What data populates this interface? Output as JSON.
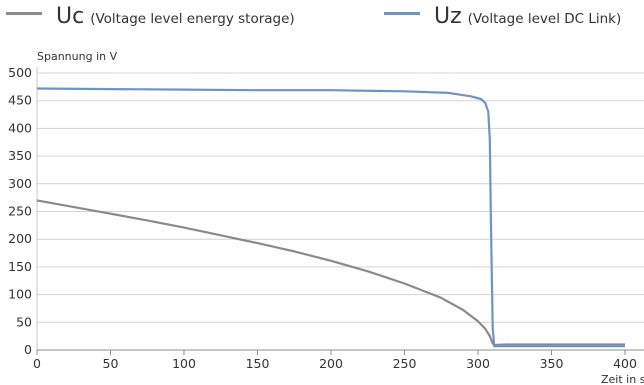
{
  "legend": [
    {
      "symbol": "Uc",
      "desc": "(Voltage level energy storage)",
      "color": "#8a8a8a"
    },
    {
      "symbol": "Uz",
      "desc": "(Voltage level DC Link)",
      "color": "#6f93c7"
    }
  ],
  "chart_data": {
    "type": "line",
    "ylabel": "Spannung in V",
    "xlabel": "Zeit in s",
    "xlim": [
      0,
      400
    ],
    "ylim": [
      0,
      500
    ],
    "xticks": [
      0,
      50,
      100,
      150,
      200,
      250,
      300,
      350,
      400
    ],
    "yticks": [
      0,
      50,
      100,
      150,
      200,
      250,
      300,
      350,
      400,
      450,
      500
    ],
    "grid": "horizontal",
    "legend_position": "top",
    "series": [
      {
        "name": "Uc",
        "color": "#8a8a8a",
        "points": [
          [
            0,
            270
          ],
          [
            25,
            258
          ],
          [
            50,
            246
          ],
          [
            75,
            234
          ],
          [
            100,
            221
          ],
          [
            125,
            207
          ],
          [
            150,
            193
          ],
          [
            175,
            178
          ],
          [
            200,
            161
          ],
          [
            225,
            142
          ],
          [
            250,
            120
          ],
          [
            275,
            94
          ],
          [
            290,
            72
          ],
          [
            300,
            52
          ],
          [
            305,
            38
          ],
          [
            308,
            25
          ],
          [
            310,
            12
          ],
          [
            311,
            9
          ],
          [
            320,
            10
          ],
          [
            400,
            10
          ]
        ]
      },
      {
        "name": "Uz",
        "color": "#6f93c7",
        "points": [
          [
            0,
            472
          ],
          [
            50,
            471
          ],
          [
            100,
            470
          ],
          [
            150,
            469
          ],
          [
            200,
            469
          ],
          [
            250,
            467
          ],
          [
            280,
            464
          ],
          [
            295,
            458
          ],
          [
            302,
            453
          ],
          [
            305,
            446
          ],
          [
            307,
            430
          ],
          [
            308,
            380
          ],
          [
            309,
            200
          ],
          [
            310,
            40
          ],
          [
            311,
            7
          ],
          [
            320,
            7
          ],
          [
            400,
            7
          ]
        ]
      }
    ]
  }
}
